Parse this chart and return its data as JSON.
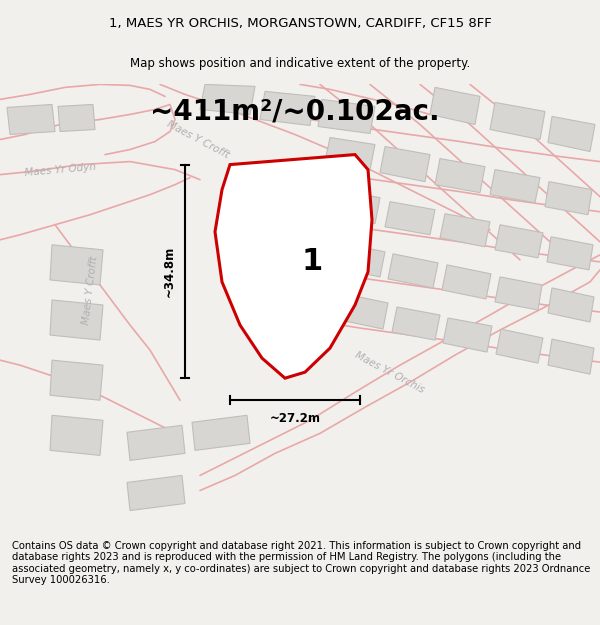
{
  "title_line1": "1, MAES YR ORCHIS, MORGANSTOWN, CARDIFF, CF15 8FF",
  "title_line2": "Map shows position and indicative extent of the property.",
  "area_text": "~411m²/~0.102ac.",
  "dim_height": "~34.8m",
  "dim_width": "~27.2m",
  "plot_number": "1",
  "footer_text": "Contains OS data © Crown copyright and database right 2021. This information is subject to Crown copyright and database rights 2023 and is reproduced with the permission of HM Land Registry. The polygons (including the associated geometry, namely x, y co-ordinates) are subject to Crown copyright and database rights 2023 Ordnance Survey 100026316.",
  "bg_color": "#f2f0ed",
  "map_bg": "#f2f0ed",
  "road_color": "#e8a8a8",
  "plot_fill": "#ffffff",
  "plot_outline": "#cc0000",
  "building_fill": "#d8d6d3",
  "building_outline": "#c0bebb",
  "road_label_color": "#b0b0b0",
  "title_fontsize": 9.5,
  "subtitle_fontsize": 8.5,
  "area_fontsize": 20,
  "footer_fontsize": 7.2,
  "label_fontsize": 7.5
}
